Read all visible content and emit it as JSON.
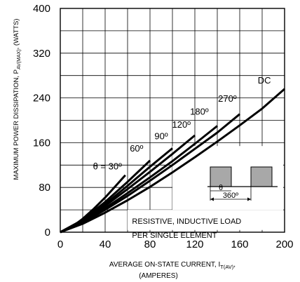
{
  "chart_data": {
    "type": "line",
    "xlabel_line1": "AVERAGE ON-STATE  CURRENT, I",
    "xlabel_sub": "T(AV)",
    "xlabel_tail": ",",
    "xlabel_line2": "(AMPERES)",
    "ylabel_main": "MAXIMUM POWER DISSIPATION, P",
    "ylabel_sub": "AV(MAX)",
    "ylabel_tail": ", (WATTS)",
    "xlim": [
      0,
      200
    ],
    "ylim": [
      0,
      400
    ],
    "x_ticks": [
      0,
      40,
      80,
      120,
      160,
      200
    ],
    "y_ticks": [
      0,
      80,
      160,
      240,
      320,
      400
    ],
    "grid": true,
    "grid_step_x": 20,
    "grid_step_y": 40,
    "series": [
      {
        "name": "θ = 30º",
        "x": [
          0,
          10,
          20,
          30,
          40,
          50,
          58
        ],
        "y": [
          0,
          9,
          24,
          42,
          62,
          84,
          102
        ],
        "label_at": [
          42,
          112
        ]
      },
      {
        "name": "60º",
        "x": [
          0,
          20,
          40,
          60,
          80
        ],
        "y": [
          0,
          22,
          54,
          90,
          128
        ],
        "label_at": [
          68,
          144
        ]
      },
      {
        "name": "90º",
        "x": [
          0,
          20,
          40,
          60,
          80,
          100
        ],
        "y": [
          0,
          21,
          50,
          83,
          117,
          150
        ],
        "label_at": [
          90,
          166
        ]
      },
      {
        "name": "120º",
        "x": [
          0,
          20,
          40,
          60,
          80,
          100,
          120
        ],
        "y": [
          0,
          20,
          47,
          77,
          108,
          140,
          173
        ],
        "label_at": [
          108,
          187
        ]
      },
      {
        "name": "180º",
        "x": [
          0,
          20,
          40,
          60,
          80,
          100,
          120,
          140
        ],
        "y": [
          0,
          18,
          43,
          70,
          98,
          127,
          158,
          190
        ],
        "label_at": [
          124,
          210
        ]
      },
      {
        "name": "270º",
        "x": [
          0,
          20,
          40,
          60,
          80,
          100,
          120,
          140,
          160
        ],
        "y": [
          0,
          17,
          40,
          65,
          92,
          120,
          149,
          178,
          211
        ],
        "label_at": [
          149,
          233
        ]
      },
      {
        "name": "DC",
        "x": [
          0,
          20,
          40,
          60,
          80,
          100,
          120,
          140,
          160,
          180,
          200
        ],
        "y": [
          0,
          15,
          35,
          57,
          81,
          107,
          134,
          162,
          191,
          221,
          256
        ],
        "label_at": [
          182,
          266
        ]
      }
    ],
    "inset": {
      "note_line1": "RESISTIVE, INDUCTIVE LOAD",
      "note_line2": "PER SINGLE ELEMENT",
      "theta_label": "θ",
      "period_label": "360º"
    }
  }
}
